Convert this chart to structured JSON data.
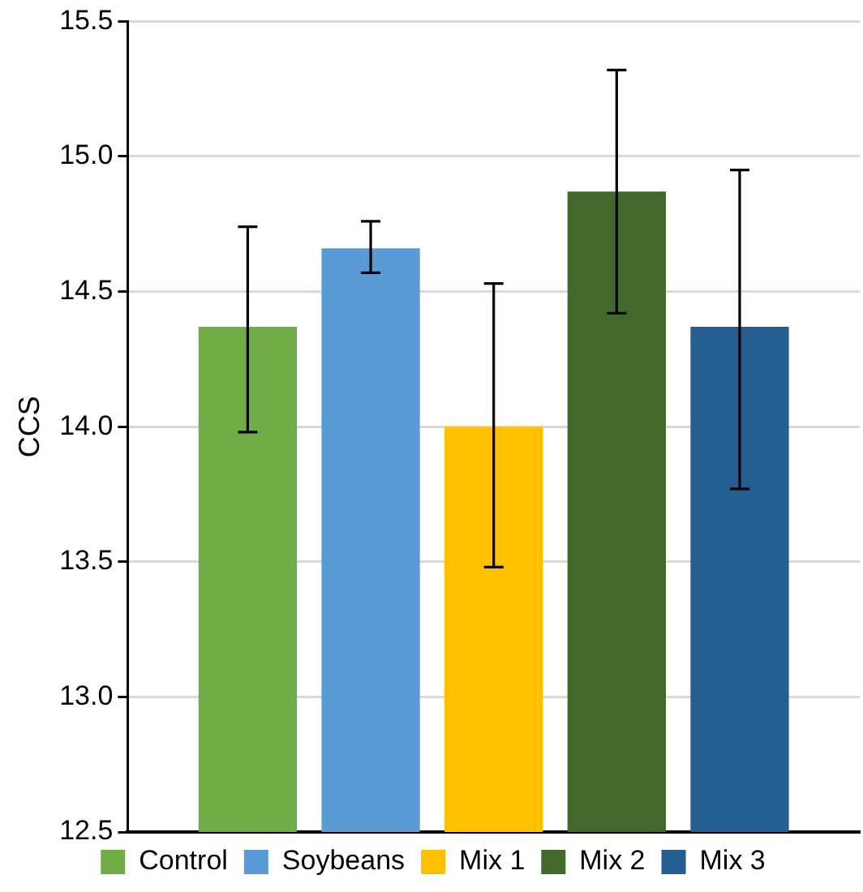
{
  "chart_data": {
    "type": "bar",
    "ylabel": "CCS",
    "categories": [
      null
    ],
    "series": [
      {
        "name": "Control",
        "color": "#70ad47",
        "values": [
          14.37
        ],
        "errors": [
          [
            13.98,
            14.74
          ]
        ]
      },
      {
        "name": "Soybeans",
        "color": "#5b9bd5",
        "values": [
          14.66
        ],
        "errors": [
          [
            14.57,
            14.76
          ]
        ]
      },
      {
        "name": "Mix 1",
        "color": "#ffc000",
        "values": [
          14.0
        ],
        "errors": [
          [
            13.48,
            14.53
          ]
        ]
      },
      {
        "name": "Mix 2",
        "color": "#43682b",
        "values": [
          14.87
        ],
        "errors": [
          [
            14.42,
            15.32
          ]
        ]
      },
      {
        "name": "Mix 3",
        "color": "#255e91",
        "values": [
          14.37
        ],
        "errors": [
          [
            13.77,
            14.95
          ]
        ]
      }
    ],
    "ylim": [
      12.5,
      15.5
    ],
    "yticks": [
      {
        "value": 12.5,
        "label": "12.5"
      },
      {
        "value": 13,
        "label": "13.0"
      },
      {
        "value": 13.5,
        "label": "13.5"
      },
      {
        "value": 14,
        "label": "14.0"
      },
      {
        "value": 14.5,
        "label": "14.5"
      },
      {
        "value": 15,
        "label": "15.0"
      },
      {
        "value": 15.5,
        "label": "15.5"
      }
    ],
    "grid": "y",
    "legend": "bottom",
    "tick_labels": "y"
  }
}
